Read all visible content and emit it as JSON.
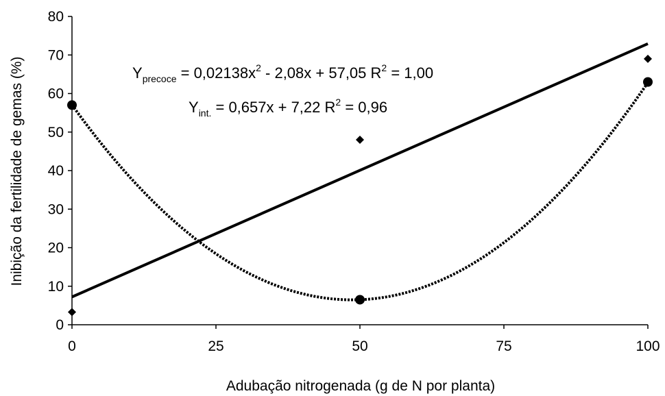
{
  "chart_data": {
    "type": "scatter",
    "xlabel": "Adubação nitrogenada (g de N por planta)",
    "ylabel": "Inibição da fertilidade de gemas (%)",
    "xlim": [
      0,
      100
    ],
    "ylim": [
      0,
      80
    ],
    "x_ticks": [
      "0",
      "25",
      "50",
      "75",
      "100"
    ],
    "y_ticks": [
      "0",
      "10",
      "20",
      "30",
      "40",
      "50",
      "60",
      "70",
      "80"
    ],
    "grid": false,
    "series": [
      {
        "marker": "diamond",
        "points": [
          {
            "x": 0,
            "y": 3.3
          },
          {
            "x": 50,
            "y": 48
          },
          {
            "x": 100,
            "y": 69
          }
        ],
        "fit": {
          "kind": "linear",
          "a": 0.657,
          "b": 7.22,
          "style": "solid"
        }
      },
      {
        "marker": "circle",
        "points": [
          {
            "x": 0,
            "y": 57
          },
          {
            "x": 50,
            "y": 6.5
          },
          {
            "x": 100,
            "y": 63
          }
        ],
        "fit": {
          "kind": "quadratic",
          "a": 0.02138,
          "b": -2.08,
          "c": 57.05,
          "style": "dotted"
        }
      }
    ],
    "annotations": {
      "eq1": {
        "y_main": "Y",
        "y_sub": "precoce",
        "part1": " = 0,02138x",
        "sup1": "2",
        "part2": " - 2,08x + 57,05  R",
        "sup2": "2",
        "part3": " = 1,00"
      },
      "eq2": {
        "y_main": "Y",
        "y_sub": "int.",
        "part1": " = 0,657x + 7,22   R",
        "sup1": "2",
        "part2": " = 0,96"
      }
    }
  }
}
